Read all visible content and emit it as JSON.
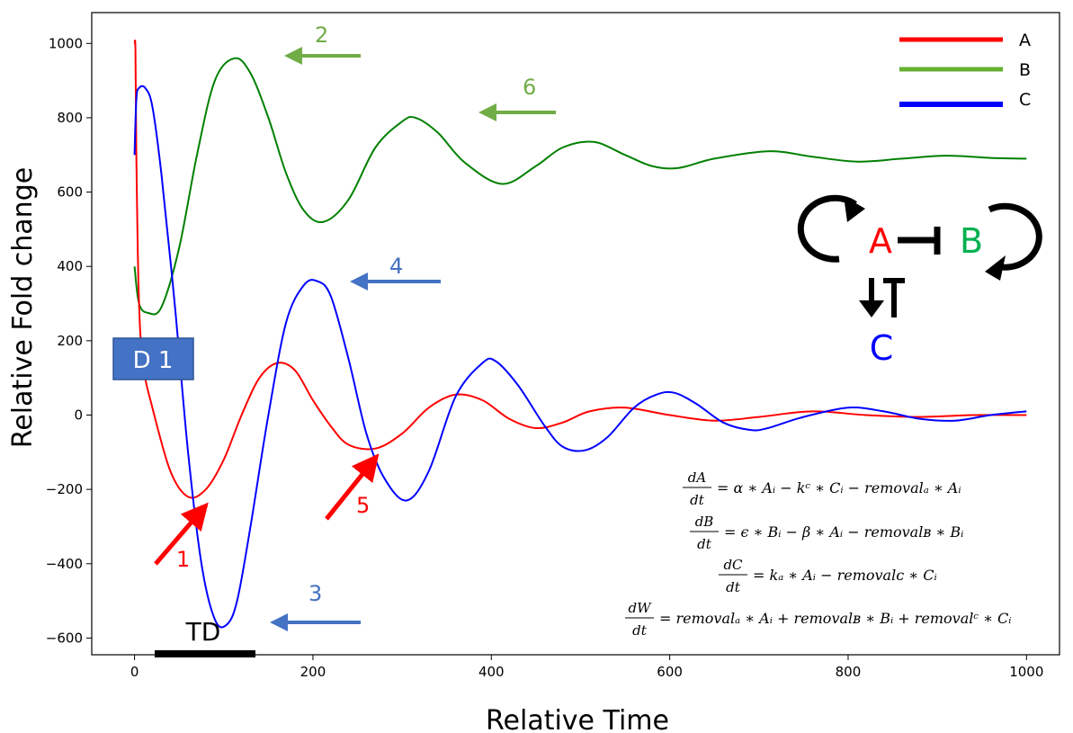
{
  "chart_data": {
    "type": "line",
    "title": "",
    "xlabel": "Relative Time",
    "ylabel": "Relative Fold change",
    "xlim": [
      -48,
      1037
    ],
    "ylim": [
      -645,
      1083
    ],
    "xticks": [
      "0",
      "200",
      "400",
      "600",
      "800",
      "1000"
    ],
    "yticks": [
      "1000",
      "800",
      "600",
      "400",
      "200",
      "0",
      "−200",
      "−400",
      "−600"
    ],
    "grid": false,
    "legend_position": "top-right",
    "series": [
      {
        "name": "A",
        "color": "#ff0000",
        "x": [
          0,
          1,
          2,
          5,
          10,
          20,
          40,
          60,
          80,
          100,
          120,
          140,
          160,
          180,
          200,
          220,
          240,
          270,
          300,
          330,
          360,
          390,
          420,
          450,
          480,
          510,
          550,
          600,
          650,
          700,
          760,
          820,
          880,
          940,
          1000
        ],
        "y": [
          1000,
          980,
          700,
          300,
          130,
          20,
          -150,
          -220,
          -200,
          -120,
          0,
          100,
          140,
          120,
          40,
          -30,
          -80,
          -90,
          -50,
          20,
          55,
          40,
          -10,
          -35,
          -20,
          10,
          20,
          0,
          -15,
          -5,
          10,
          0,
          -5,
          0,
          0
        ]
      },
      {
        "name": "B",
        "color": "#008000",
        "x": [
          0,
          5,
          15,
          30,
          50,
          70,
          90,
          112,
          130,
          150,
          170,
          190,
          212,
          240,
          270,
          300,
          315,
          340,
          370,
          412,
          450,
          480,
          515,
          550,
          580,
          610,
          650,
          712,
          760,
          810,
          860,
          910,
          960,
          1000
        ],
        "y": [
          400,
          300,
          275,
          290,
          450,
          700,
          900,
          960,
          920,
          800,
          650,
          550,
          520,
          580,
          720,
          790,
          800,
          760,
          680,
          622,
          670,
          720,
          735,
          700,
          670,
          665,
          690,
          710,
          695,
          682,
          690,
          698,
          692,
          690
        ]
      },
      {
        "name": "C",
        "color": "#0000ff",
        "x": [
          0,
          2,
          5,
          12,
          20,
          30,
          45,
          60,
          75,
          90,
          103,
          115,
          130,
          150,
          170,
          190,
          205,
          220,
          240,
          260,
          280,
          305,
          330,
          360,
          390,
          405,
          430,
          460,
          480,
          505,
          530,
          560,
          585,
          605,
          630,
          660,
          690,
          710,
          750,
          800,
          840,
          880,
          920,
          960,
          1000
        ],
        "y": [
          700,
          850,
          880,
          880,
          830,
          650,
          300,
          -100,
          -400,
          -550,
          -565,
          -500,
          -300,
          0,
          250,
          350,
          360,
          320,
          150,
          -50,
          -170,
          -230,
          -150,
          50,
          140,
          145,
          80,
          -30,
          -85,
          -95,
          -60,
          20,
          55,
          60,
          30,
          -20,
          -40,
          -35,
          -5,
          20,
          10,
          -10,
          -15,
          0,
          10
        ]
      }
    ],
    "legend": [
      {
        "name": "A",
        "color": "#ff0000"
      },
      {
        "name": "B",
        "color": "#66b030"
      },
      {
        "name": "C",
        "color": "#0000ff"
      }
    ],
    "annotations": [
      {
        "label": "1",
        "color": "#ff0000"
      },
      {
        "label": "2",
        "color": "#70ad47"
      },
      {
        "label": "3",
        "color": "#4472c4"
      },
      {
        "label": "4",
        "color": "#4472c4"
      },
      {
        "label": "5",
        "color": "#ff0000"
      },
      {
        "label": "6",
        "color": "#70ad47"
      }
    ],
    "d1_label": "D 1",
    "td_label": "TD",
    "network": {
      "a": "A",
      "b": "B",
      "c": "C",
      "a_color": "#ff0000",
      "b_color": "#00b050",
      "c_color": "#0000ff"
    }
  },
  "equations": {
    "eq1": {
      "num": "dA",
      "den": "dt",
      "rhs": "= α ∗ Aᵢ − kᶜ ∗ Cᵢ − removalₐ ∗ Aᵢ"
    },
    "eq2": {
      "num": "dB",
      "den": "dt",
      "rhs": "= ϵ ∗ Bᵢ − β ∗ Aᵢ − removalʙ ∗ Bᵢ"
    },
    "eq3": {
      "num": "dC",
      "den": "dt",
      "rhs": "= kₐ ∗ Aᵢ − removalᴄ ∗ Cᵢ"
    },
    "eq4": {
      "num": "dW",
      "den": "dt",
      "rhs": "= removalₐ ∗ Aᵢ + removalʙ ∗ Bᵢ + removalᶜ ∗ Cᵢ"
    }
  }
}
